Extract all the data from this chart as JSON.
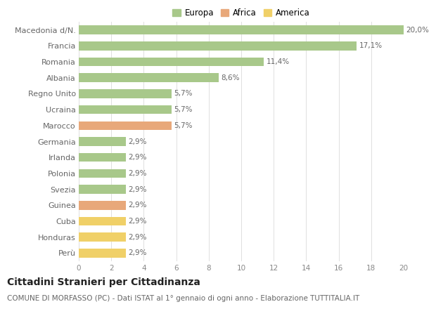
{
  "categories": [
    "Macedonia d/N.",
    "Francia",
    "Romania",
    "Albania",
    "Regno Unito",
    "Ucraina",
    "Marocco",
    "Germania",
    "Irlanda",
    "Polonia",
    "Svezia",
    "Guinea",
    "Cuba",
    "Honduras",
    "Perù"
  ],
  "values": [
    20.0,
    17.1,
    11.4,
    8.6,
    5.7,
    5.7,
    5.7,
    2.9,
    2.9,
    2.9,
    2.9,
    2.9,
    2.9,
    2.9,
    2.9
  ],
  "labels": [
    "20,0%",
    "17,1%",
    "11,4%",
    "8,6%",
    "5,7%",
    "5,7%",
    "5,7%",
    "2,9%",
    "2,9%",
    "2,9%",
    "2,9%",
    "2,9%",
    "2,9%",
    "2,9%",
    "2,9%"
  ],
  "continent": [
    "Europa",
    "Europa",
    "Europa",
    "Europa",
    "Europa",
    "Europa",
    "Africa",
    "Europa",
    "Europa",
    "Europa",
    "Europa",
    "Africa",
    "America",
    "America",
    "America"
  ],
  "colors": {
    "Europa": "#a8c88a",
    "Africa": "#e8a87a",
    "America": "#f0d068"
  },
  "xlim": [
    0,
    20
  ],
  "xticks": [
    0,
    2,
    4,
    6,
    8,
    10,
    12,
    14,
    16,
    18,
    20
  ],
  "title": "Cittadini Stranieri per Cittadinanza",
  "subtitle": "COMUNE DI MORFASSO (PC) - Dati ISTAT al 1° gennaio di ogni anno - Elaborazione TUTTITALIA.IT",
  "background_color": "#ffffff",
  "grid_color": "#e0e0e0",
  "bar_height": 0.55,
  "label_fontsize": 7.5,
  "title_fontsize": 10,
  "subtitle_fontsize": 7.5,
  "ytick_fontsize": 8,
  "xtick_fontsize": 7.5,
  "legend_fontsize": 8.5
}
